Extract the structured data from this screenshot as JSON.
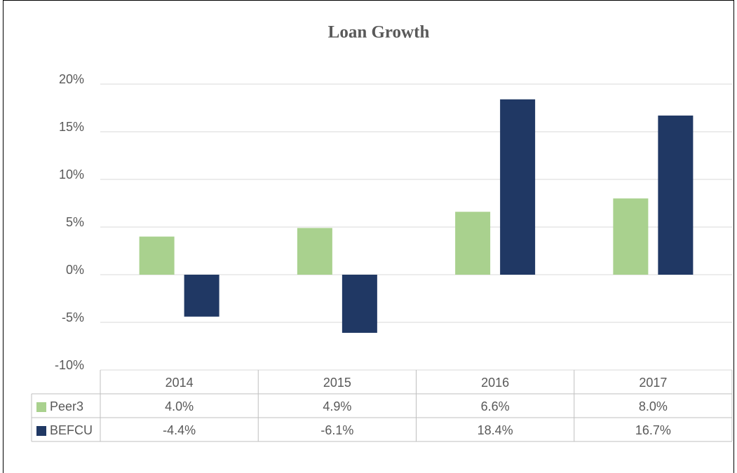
{
  "chart_data": {
    "type": "bar",
    "title": "Loan Growth",
    "categories": [
      "2014",
      "2015",
      "2016",
      "2017"
    ],
    "series": [
      {
        "name": "Peer3",
        "color": "#a9d18e",
        "values": [
          4.0,
          4.9,
          6.6,
          8.0
        ],
        "value_labels": [
          "4.0%",
          "4.9%",
          "6.6%",
          "8.0%"
        ]
      },
      {
        "name": "BEFCU",
        "color": "#203864",
        "values": [
          -4.4,
          -6.1,
          18.4,
          16.7
        ],
        "value_labels": [
          "-4.4%",
          "-6.1%",
          "18.4%",
          "16.7%"
        ]
      }
    ],
    "ylim": [
      -10,
      20
    ],
    "yticks": [
      {
        "value": -10,
        "label": "-10%"
      },
      {
        "value": -5,
        "label": "-5%"
      },
      {
        "value": 0,
        "label": "0%"
      },
      {
        "value": 5,
        "label": "5%"
      },
      {
        "value": 10,
        "label": "10%"
      },
      {
        "value": 15,
        "label": "15%"
      },
      {
        "value": 20,
        "label": "20%"
      }
    ],
    "grid": true
  }
}
